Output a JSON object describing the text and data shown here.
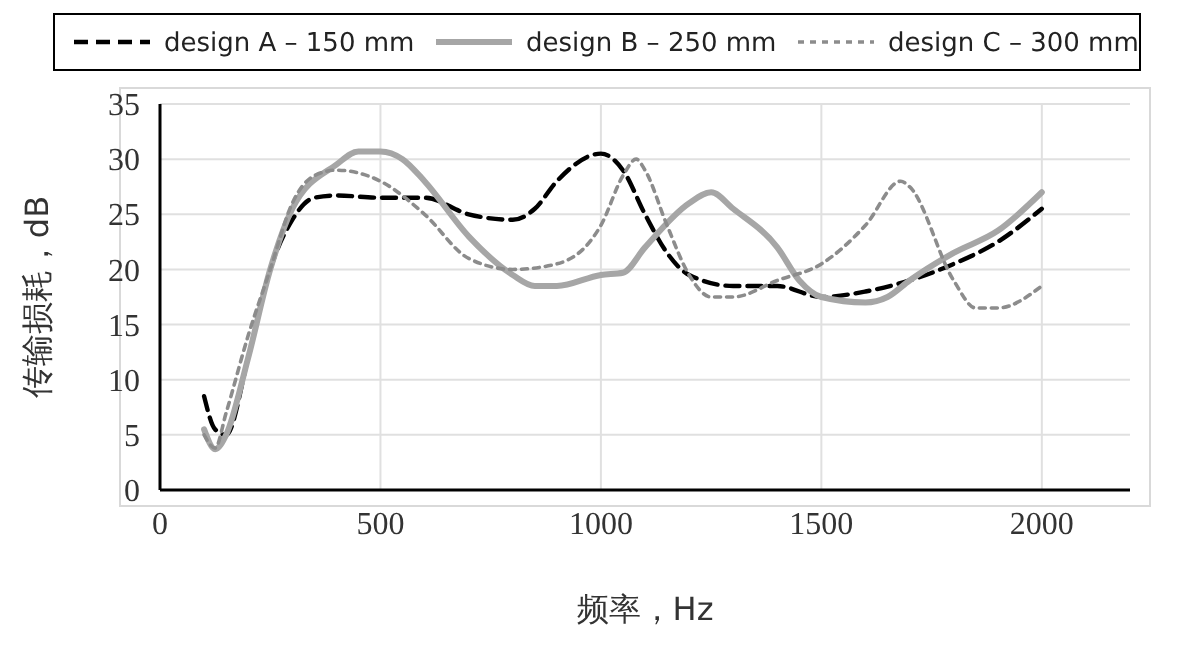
{
  "chart_data": {
    "type": "line",
    "xlabel": "频率，Hz",
    "ylabel": "传输损耗，dB",
    "xlim": [
      0,
      2200
    ],
    "xticks": [
      0,
      500,
      1000,
      1500,
      2000
    ],
    "ylim": [
      0,
      35
    ],
    "yticks": [
      0,
      5,
      10,
      15,
      20,
      25,
      30,
      35
    ],
    "grid": true,
    "legend": "top",
    "marker": "none",
    "series": [
      {
        "name": "design A – 150 mm",
        "color": "#000000",
        "line_style": "dashed",
        "x": [
          100,
          125,
          150,
          200,
          250,
          300,
          350,
          400,
          500,
          600,
          700,
          800,
          850,
          900,
          1000,
          1050,
          1100,
          1150,
          1200,
          1300,
          1400,
          1500,
          1600,
          1700,
          1800,
          1900,
          2000
        ],
        "values": [
          8.5,
          5.5,
          5,
          12,
          20,
          24.5,
          26.5,
          26.7,
          26.5,
          26.5,
          25,
          24.5,
          25.5,
          28,
          30.5,
          29,
          25,
          21.5,
          19.5,
          18.5,
          18.5,
          17.5,
          18,
          19,
          20.5,
          22.5,
          25.5
        ]
      },
      {
        "name": "design B – 250 mm",
        "color": "#a6a6a6",
        "line_style": "solid",
        "x": [
          100,
          125,
          150,
          200,
          250,
          300,
          400,
          450,
          500,
          550,
          600,
          700,
          800,
          850,
          900,
          1000,
          1050,
          1100,
          1200,
          1250,
          1300,
          1400,
          1450,
          1500,
          1600,
          1650,
          1700,
          1800,
          1900,
          2000
        ],
        "values": [
          5.5,
          3.7,
          5,
          12,
          20,
          25.5,
          29.5,
          30.7,
          30.7,
          30,
          28,
          23,
          19.5,
          18.5,
          18.5,
          19.5,
          19.7,
          22,
          26,
          27,
          25.5,
          22,
          19,
          17.5,
          17,
          17.5,
          19,
          21.5,
          23.5,
          27
        ]
      },
      {
        "name": "design C – 300 mm",
        "color": "#8c8c8c",
        "line_style": "dotted",
        "x": [
          100,
          125,
          150,
          200,
          250,
          300,
          350,
          400,
          500,
          600,
          700,
          800,
          900,
          1000,
          1050,
          1080,
          1100,
          1150,
          1200,
          1250,
          1300,
          1400,
          1500,
          1600,
          1680,
          1700,
          1800,
          1850,
          1900,
          2000
        ],
        "values": [
          5,
          3.8,
          7,
          14,
          20,
          26,
          28.5,
          29,
          28,
          25,
          21,
          20,
          20.5,
          24,
          28.5,
          30,
          29,
          24,
          19.5,
          17.5,
          17.5,
          19,
          20.5,
          24,
          28,
          27.5,
          19,
          16.5,
          16.5,
          18.5
        ]
      }
    ]
  }
}
